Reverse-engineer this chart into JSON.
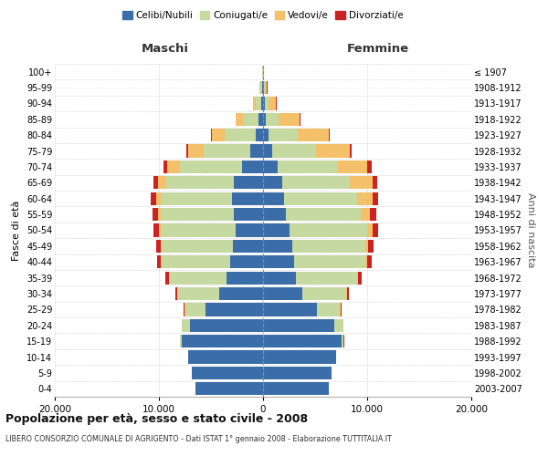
{
  "age_groups": [
    "0-4",
    "5-9",
    "10-14",
    "15-19",
    "20-24",
    "25-29",
    "30-34",
    "35-39",
    "40-44",
    "45-49",
    "50-54",
    "55-59",
    "60-64",
    "65-69",
    "70-74",
    "75-79",
    "80-84",
    "85-89",
    "90-94",
    "95-99",
    "100+"
  ],
  "birth_years": [
    "2003-2007",
    "1998-2002",
    "1993-1997",
    "1988-1992",
    "1983-1987",
    "1978-1982",
    "1973-1977",
    "1968-1972",
    "1963-1967",
    "1958-1962",
    "1953-1957",
    "1948-1952",
    "1943-1947",
    "1938-1942",
    "1933-1937",
    "1928-1932",
    "1923-1927",
    "1918-1922",
    "1913-1917",
    "1908-1912",
    "≤ 1907"
  ],
  "maschi": {
    "celibi": [
      6500,
      6800,
      7200,
      7800,
      7000,
      5500,
      4200,
      3500,
      3200,
      2900,
      2600,
      2800,
      3000,
      2800,
      2000,
      1200,
      700,
      400,
      200,
      80,
      30
    ],
    "coniugati": [
      2,
      5,
      20,
      200,
      800,
      2000,
      4000,
      5500,
      6500,
      6800,
      7200,
      7000,
      6800,
      6500,
      6000,
      4500,
      3000,
      1500,
      500,
      150,
      50
    ],
    "vedovi": [
      0,
      0,
      1,
      2,
      5,
      10,
      30,
      50,
      100,
      150,
      200,
      300,
      500,
      800,
      1200,
      1500,
      1200,
      700,
      250,
      80,
      20
    ],
    "divorziati": [
      1,
      2,
      5,
      10,
      30,
      100,
      200,
      350,
      400,
      450,
      500,
      500,
      450,
      400,
      350,
      200,
      100,
      50,
      20,
      10,
      5
    ]
  },
  "femmine": {
    "nubili": [
      6300,
      6600,
      7000,
      7500,
      6800,
      5200,
      3800,
      3200,
      3000,
      2800,
      2500,
      2200,
      2000,
      1800,
      1400,
      900,
      500,
      300,
      150,
      60,
      20
    ],
    "coniugate": [
      2,
      5,
      25,
      250,
      900,
      2200,
      4200,
      5800,
      6800,
      7000,
      7500,
      7200,
      7000,
      6500,
      5800,
      4200,
      2800,
      1200,
      400,
      120,
      40
    ],
    "vedove": [
      0,
      0,
      1,
      3,
      8,
      20,
      50,
      100,
      200,
      300,
      500,
      900,
      1500,
      2200,
      2800,
      3200,
      3000,
      2000,
      700,
      200,
      60
    ],
    "divorziate": [
      1,
      2,
      5,
      12,
      40,
      110,
      220,
      380,
      450,
      500,
      550,
      580,
      520,
      480,
      400,
      250,
      120,
      70,
      30,
      15,
      5
    ]
  },
  "colors": {
    "celibi": "#3b6ea8",
    "coniugati": "#c5d9a0",
    "vedovi": "#f5c06a",
    "divorziati": "#cc2222"
  },
  "xlim": 20000,
  "title": "Popolazione per età, sesso e stato civile - 2008",
  "subtitle": "LIBERO CONSORZIO COMUNALE DI AGRIGENTO - Dati ISTAT 1° gennaio 2008 - Elaborazione TUTTITALIA.IT",
  "xlabel_left": "Maschi",
  "xlabel_right": "Femmine",
  "ylabel_left": "Fasce di età",
  "ylabel_right": "Anni di nascita",
  "xticks": [
    -20000,
    -10000,
    0,
    10000,
    20000
  ],
  "xtick_labels": [
    "20.000",
    "10.000",
    "0",
    "10.000",
    "20.000"
  ],
  "background_color": "#ffffff",
  "grid_color": "#bbbbbb"
}
